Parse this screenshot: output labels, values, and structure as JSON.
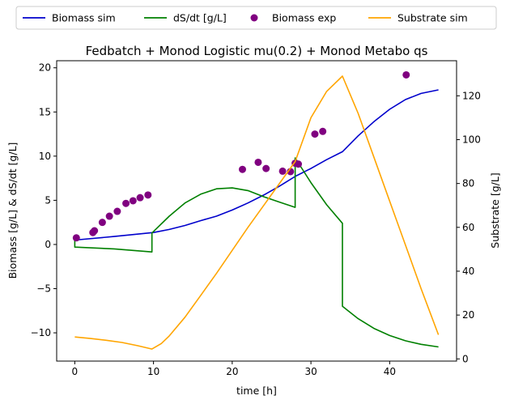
{
  "chart_data": {
    "type": "line",
    "title": "Fedbatch + Monod Logistic mu(0.2) + Monod Metabo qs",
    "xlabel": "time [h]",
    "ylabel_left": "Biomass [g/L] & dS/dt [g/L]",
    "ylabel_right": "Substrate [g/L]",
    "xlim": [
      -2.3,
      48.5
    ],
    "ylim_left": [
      -13.2,
      20.8
    ],
    "ylim_right": [
      -1,
      136
    ],
    "x_ticks": [
      0,
      10,
      20,
      30,
      40
    ],
    "y_left_ticks": [
      -10,
      -5,
      0,
      5,
      10,
      15,
      20
    ],
    "y_right_ticks": [
      0,
      20,
      40,
      60,
      80,
      100,
      120
    ],
    "legend_position": "top-outside",
    "grid": false,
    "series": [
      {
        "name": "Biomass sim",
        "axis": "left",
        "style": "line",
        "color": "#0000cc",
        "x": [
          0,
          5,
          10,
          12,
          14,
          16,
          18,
          20,
          22,
          24,
          26,
          28,
          30,
          32,
          34,
          36,
          38,
          40,
          42,
          44,
          46.2
        ],
        "y": [
          0.5,
          0.9,
          1.35,
          1.7,
          2.15,
          2.7,
          3.2,
          3.9,
          4.7,
          5.6,
          6.6,
          7.7,
          8.6,
          9.6,
          10.5,
          12.3,
          13.9,
          15.3,
          16.4,
          17.1,
          17.5
        ]
      },
      {
        "name": "dS/dt [g/L]",
        "axis": "left",
        "style": "line",
        "color": "#008000",
        "x": [
          0,
          0,
          5,
          9.8,
          9.8,
          12,
          14,
          16,
          18,
          20,
          22,
          24,
          26,
          28,
          28,
          30,
          32,
          34,
          34,
          36,
          38,
          40,
          42,
          44,
          46.2
        ],
        "y": [
          0.7,
          -0.3,
          -0.5,
          -0.85,
          1.3,
          3.2,
          4.7,
          5.7,
          6.3,
          6.4,
          6.1,
          5.4,
          4.8,
          4.2,
          9.8,
          7.0,
          4.5,
          2.4,
          -7.0,
          -8.4,
          -9.5,
          -10.3,
          -10.9,
          -11.3,
          -11.6
        ]
      },
      {
        "name": "Biomass exp",
        "axis": "left",
        "style": "scatter",
        "color": "#800080",
        "x": [
          0.2,
          2.3,
          2.5,
          3.5,
          4.4,
          5.4,
          6.5,
          7.4,
          8.3,
          9.3,
          21.3,
          23.3,
          24.3,
          26.4,
          27.4,
          28.0,
          28.4,
          30.5,
          31.5,
          42.1
        ],
        "y": [
          0.75,
          1.35,
          1.55,
          2.5,
          3.2,
          3.75,
          4.65,
          4.95,
          5.3,
          5.6,
          8.5,
          9.3,
          8.6,
          8.3,
          8.25,
          9.2,
          9.1,
          12.5,
          12.8,
          19.2
        ]
      },
      {
        "name": "Substrate sim",
        "axis": "right",
        "style": "line",
        "color": "#ffa500",
        "x": [
          0,
          2,
          4,
          6,
          8,
          9.8,
          11,
          12,
          14,
          16,
          18,
          20,
          22,
          24,
          26,
          28,
          30,
          32,
          34,
          36,
          38,
          40,
          42,
          44,
          46.2
        ],
        "y": [
          10,
          9.3,
          8.5,
          7.5,
          6,
          4.5,
          7,
          10.5,
          19,
          29,
          39,
          49.5,
          60,
          70,
          80,
          90,
          110,
          122,
          129,
          112,
          92,
          72,
          52,
          32,
          11
        ]
      }
    ]
  }
}
